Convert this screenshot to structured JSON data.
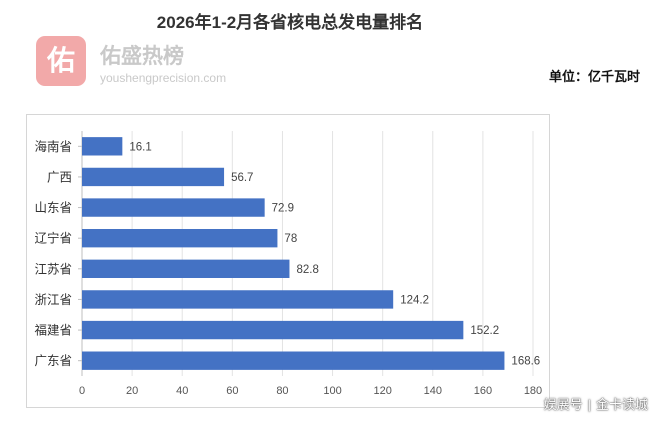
{
  "title": "2026年1-2月各省核电总发电量排名",
  "watermark": {
    "logo_char": "佑",
    "name": "佑盛热榜",
    "url": "youshengprecision.com"
  },
  "unit_label": "单位：亿千瓦时",
  "footer": {
    "left": "娱展号",
    "right": "金卡读城"
  },
  "chart_data": {
    "type": "bar",
    "orientation": "horizontal",
    "categories": [
      "海南省",
      "广西",
      "山东省",
      "辽宁省",
      "江苏省",
      "浙江省",
      "福建省",
      "广东省"
    ],
    "values": [
      16.1,
      56.7,
      72.9,
      78,
      82.8,
      124.2,
      152.2,
      168.6
    ],
    "value_labels": [
      "16.1",
      "56.7",
      "72.9",
      "78",
      "82.8",
      "124.2",
      "152.2",
      "168.6"
    ],
    "x_ticks": [
      "0",
      "20",
      "40",
      "60",
      "80",
      "100",
      "120",
      "140",
      "160",
      "180"
    ],
    "xlim": [
      0,
      180
    ],
    "grid": true,
    "bar_color": "#4472c4"
  }
}
